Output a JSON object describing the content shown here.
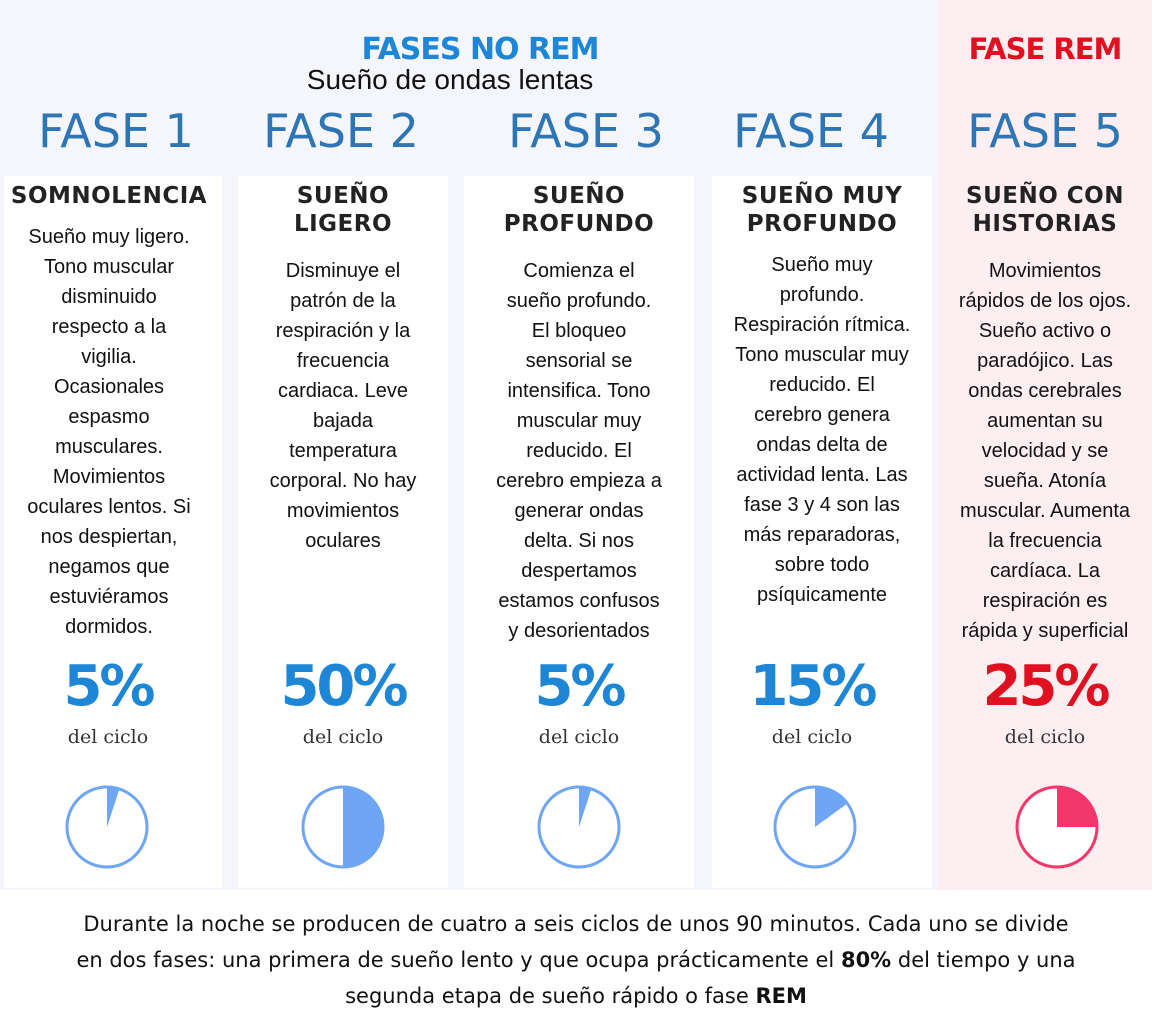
{
  "header": {
    "norem_title": "FASES NO REM",
    "norem_subtitle": "Sueño de ondas lentas",
    "rem_title": "FASE REM"
  },
  "colors": {
    "norem_accent": "#1e86d6",
    "rem_accent": "#e01020",
    "fase_label": "#2e75b6",
    "pie_blue": "#6ea6f5",
    "pie_red": "#f2386b"
  },
  "phases": [
    {
      "fase": "FASE 1",
      "heading": [
        "SOMNOLENCIA"
      ],
      "description": [
        "Sueño muy ligero.",
        "Tono muscular",
        "disminuido",
        "respecto a la",
        "vigilia.",
        "Ocasionales",
        "espasmo",
        "musculares.",
        "Movimientos",
        "oculares lentos. Si",
        "nos despiertan,",
        "negamos que",
        "estuviéramos",
        "dormidos."
      ],
      "percent_label": "5%",
      "percent_value": 5,
      "cycle_label": "del ciclo"
    },
    {
      "fase": "FASE 2",
      "heading": [
        "SUEÑO",
        "LIGERO"
      ],
      "description": [
        "Disminuye el",
        "patrón de la",
        "respiración y la",
        "frecuencia",
        "cardiaca. Leve",
        "bajada",
        "temperatura",
        "corporal. No hay",
        "movimientos",
        "oculares"
      ],
      "percent_label": "50%",
      "percent_value": 50,
      "cycle_label": "del ciclo"
    },
    {
      "fase": "FASE 3",
      "heading": [
        "SUEÑO",
        "PROFUNDO"
      ],
      "description": [
        "Comienza el",
        "sueño profundo.",
        "El bloqueo",
        "sensorial se",
        "intensifica. Tono",
        "muscular muy",
        "reducido. El",
        "cerebro empieza a",
        "generar ondas",
        "delta. Si nos",
        "despertamos",
        "estamos confusos",
        "y desorientados"
      ],
      "percent_label": "5%",
      "percent_value": 5,
      "cycle_label": "del ciclo"
    },
    {
      "fase": "FASE 4",
      "heading": [
        "SUEÑO MUY",
        "PROFUNDO"
      ],
      "description": [
        "Sueño muy",
        "profundo.",
        "Respiración rítmica.",
        "Tono muscular muy",
        "reducido. El",
        "cerebro genera",
        "ondas delta de",
        "actividad lenta. Las",
        "fase 3 y 4 son las",
        "más reparadoras,",
        "sobre todo",
        "psíquicamente"
      ],
      "percent_label": "15%",
      "percent_value": 15,
      "cycle_label": "del ciclo"
    },
    {
      "fase": "FASE 5",
      "heading": [
        "SUEÑO CON",
        "HISTORIAS"
      ],
      "description": [
        "Movimientos",
        "rápidos de los ojos.",
        "Sueño activo o",
        "paradójico. Las",
        "ondas cerebrales",
        "aumentan su",
        "velocidad  y se",
        "sueña. Atonía",
        "muscular. Aumenta",
        "la frecuencia",
        "cardíaca. La",
        "respiración es",
        "rápida y superficial"
      ],
      "percent_label": "25%",
      "percent_value": 25,
      "cycle_label": "del ciclo"
    }
  ],
  "footer": {
    "line1": "Durante la noche se producen de cuatro a seis ciclos de unos 90 minutos. Cada uno se divide",
    "line2_a": "en dos fases: una primera de sueño lento y que ocupa prácticamente el ",
    "line2_bold": "80%",
    "line2_b": " del tiempo y una",
    "line3_a": "segunda etapa de sueño rápido o fase ",
    "line3_bold": "REM"
  }
}
